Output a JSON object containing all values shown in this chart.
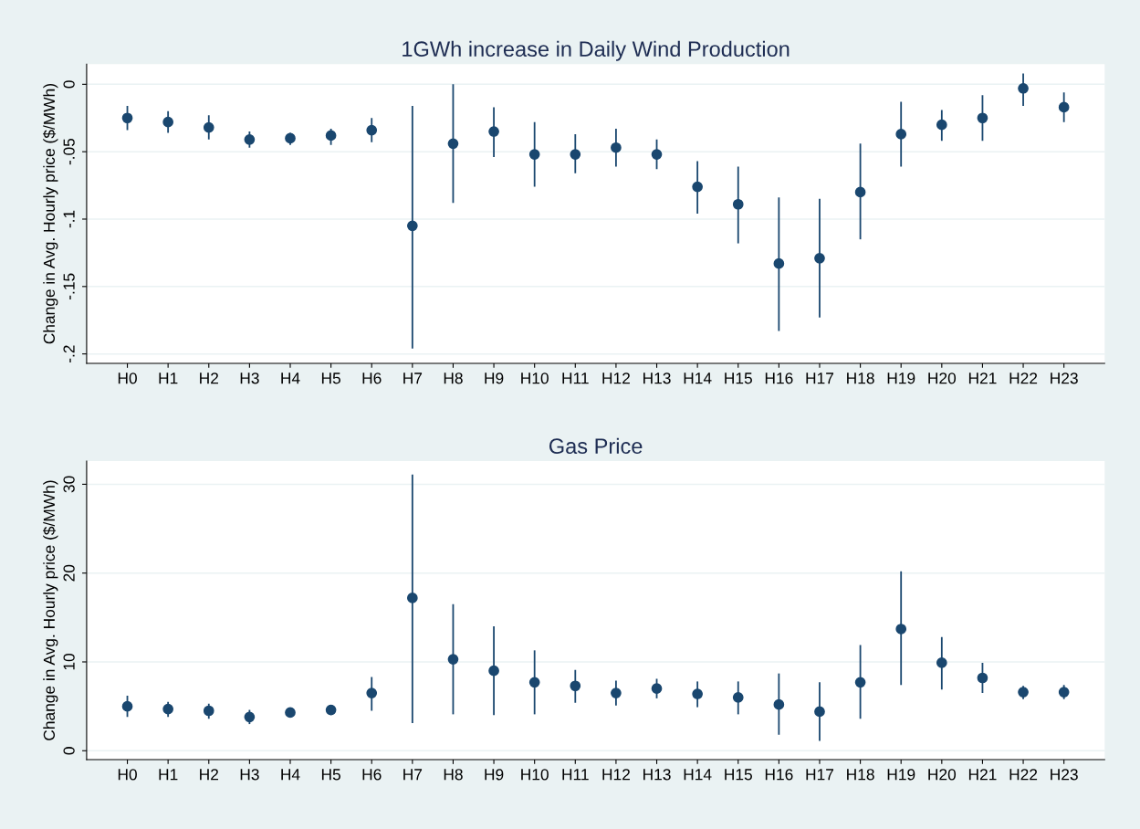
{
  "chart_data": [
    {
      "type": "scatter",
      "title": "1GWh increase in Daily Wind Production",
      "ylabel": "Change in Avg. Hourly price ($/MWh)",
      "categories": [
        "H0",
        "H1",
        "H2",
        "H3",
        "H4",
        "H5",
        "H6",
        "H7",
        "H8",
        "H9",
        "H10",
        "H11",
        "H12",
        "H13",
        "H14",
        "H15",
        "H16",
        "H17",
        "H18",
        "H19",
        "H20",
        "H21",
        "H22",
        "H23"
      ],
      "series": [
        {
          "color": "#1a476f",
          "values": [
            -0.025,
            -0.028,
            -0.032,
            -0.041,
            -0.04,
            -0.038,
            -0.034,
            -0.105,
            -0.044,
            -0.035,
            -0.052,
            -0.052,
            -0.047,
            -0.052,
            -0.076,
            -0.089,
            -0.133,
            -0.129,
            -0.08,
            -0.037,
            -0.03,
            -0.025,
            -0.003,
            -0.017
          ],
          "errors": [
            [
              -0.034,
              -0.016
            ],
            [
              -0.036,
              -0.02
            ],
            [
              -0.041,
              -0.023
            ],
            [
              -0.047,
              -0.035
            ],
            [
              -0.045,
              -0.036
            ],
            [
              -0.045,
              -0.033
            ],
            [
              -0.043,
              -0.025
            ],
            [
              -0.196,
              -0.016
            ],
            [
              -0.088,
              0.0
            ],
            [
              -0.054,
              -0.017
            ],
            [
              -0.076,
              -0.028
            ],
            [
              -0.066,
              -0.037
            ],
            [
              -0.061,
              -0.033
            ],
            [
              -0.063,
              -0.041
            ],
            [
              -0.096,
              -0.057
            ],
            [
              -0.118,
              -0.061
            ],
            [
              -0.183,
              -0.084
            ],
            [
              -0.173,
              -0.085
            ],
            [
              -0.115,
              -0.044
            ],
            [
              -0.061,
              -0.013
            ],
            [
              -0.042,
              -0.019
            ],
            [
              -0.042,
              -0.008
            ],
            [
              -0.016,
              0.008
            ],
            [
              -0.028,
              -0.006
            ]
          ]
        }
      ],
      "ylim": [
        -0.207,
        0.015
      ],
      "yticks": [
        {
          "value": -0.2,
          "label": "-.2"
        },
        {
          "value": -0.15,
          "label": "-.15"
        },
        {
          "value": -0.1,
          "label": "-.1"
        },
        {
          "value": -0.05,
          "label": "-.05"
        },
        0
      ],
      "grid": "y",
      "marker": "circle",
      "legend": false
    },
    {
      "type": "scatter",
      "title": "Gas Price",
      "ylabel": "Change in Avg. Hourly price ($/MWh)",
      "categories": [
        "H0",
        "H1",
        "H2",
        "H3",
        "H4",
        "H5",
        "H6",
        "H7",
        "H8",
        "H9",
        "H10",
        "H11",
        "H12",
        "H13",
        "H14",
        "H15",
        "H16",
        "H17",
        "H18",
        "H19",
        "H20",
        "H21",
        "H22",
        "H23"
      ],
      "series": [
        {
          "color": "#1a476f",
          "values": [
            5.0,
            4.7,
            4.5,
            3.8,
            4.3,
            4.6,
            6.5,
            17.2,
            10.3,
            9.0,
            7.7,
            7.3,
            6.5,
            7.0,
            6.4,
            6.0,
            5.2,
            4.4,
            7.7,
            13.7,
            9.9,
            8.2,
            6.6,
            6.6
          ],
          "errors": [
            [
              3.8,
              6.2
            ],
            [
              3.8,
              5.5
            ],
            [
              3.6,
              5.3
            ],
            [
              3.0,
              4.6
            ],
            [
              3.8,
              4.8
            ],
            [
              4.0,
              5.1
            ],
            [
              4.5,
              8.3
            ],
            [
              3.1,
              31.1
            ],
            [
              4.1,
              16.5
            ],
            [
              4.0,
              14.0
            ],
            [
              4.1,
              11.3
            ],
            [
              5.4,
              9.1
            ],
            [
              5.1,
              7.9
            ],
            [
              5.9,
              8.1
            ],
            [
              4.9,
              7.8
            ],
            [
              4.1,
              7.8
            ],
            [
              1.8,
              8.7
            ],
            [
              1.1,
              7.7
            ],
            [
              3.6,
              11.9
            ],
            [
              7.4,
              20.2
            ],
            [
              6.9,
              12.8
            ],
            [
              6.5,
              9.9
            ],
            [
              5.8,
              7.3
            ],
            [
              5.8,
              7.4
            ]
          ]
        }
      ],
      "ylim": [
        -1.0,
        32.6
      ],
      "yticks": [
        0,
        10,
        20,
        30
      ],
      "grid": "y",
      "marker": "circle",
      "legend": false
    }
  ]
}
